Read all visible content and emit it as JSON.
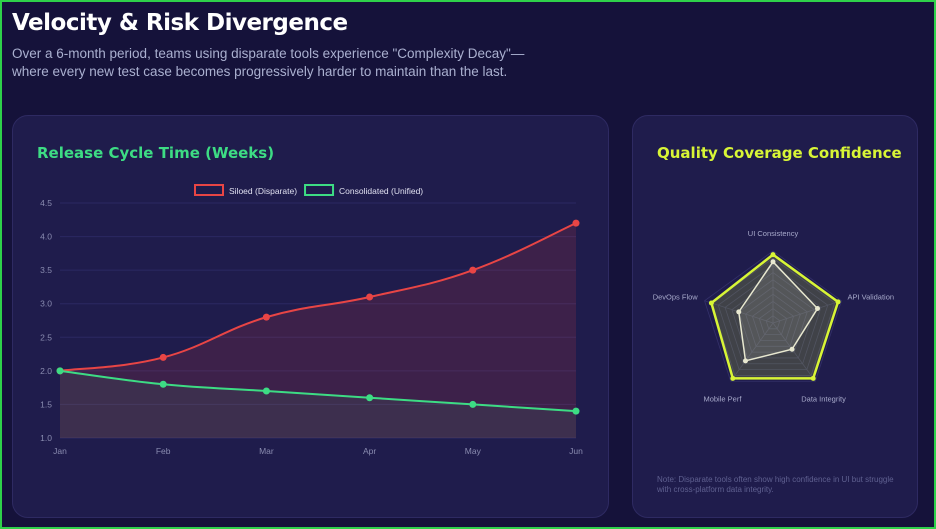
{
  "header": {
    "title": "Velocity & Risk Divergence",
    "subtitle": "Over a 6-month period, teams using disparate tools experience \"Complexity Decay\"—where every new test case becomes progressively harder to maintain than the last."
  },
  "chart_data": [
    {
      "type": "line",
      "title": "Release Cycle Time (Weeks)",
      "categories": [
        "Jan",
        "Feb",
        "Mar",
        "Apr",
        "May",
        "Jun"
      ],
      "ylim": [
        1.0,
        4.5
      ],
      "yticks": [
        "1.0",
        "1.5",
        "2.0",
        "2.5",
        "3.0",
        "3.5",
        "4.0",
        "4.5"
      ],
      "legend_position": "top",
      "series": [
        {
          "name": "Siloed (Disparate)",
          "values": [
            2.0,
            2.2,
            2.8,
            3.1,
            3.5,
            4.2
          ],
          "color": "#e84545"
        },
        {
          "name": "Consolidated (Unified)",
          "values": [
            2.0,
            1.8,
            1.7,
            1.6,
            1.5,
            1.4
          ],
          "color": "#3ddc84"
        }
      ]
    },
    {
      "type": "radar",
      "title": "Quality Coverage Confidence",
      "axes": [
        "UI Consistency",
        "API Validation",
        "Data Integrity",
        "Mobile Perf",
        "DevOps Flow"
      ],
      "range": [
        0,
        100
      ],
      "series": [
        {
          "values": [
            95,
            95,
            95,
            95,
            90
          ],
          "color": "#d8f536"
        },
        {
          "values": [
            85,
            65,
            45,
            65,
            50
          ],
          "color": "#e8e8d0"
        }
      ]
    }
  ],
  "note": "Note: Disparate tools often show high confidence in UI but struggle with cross-platform data integrity."
}
